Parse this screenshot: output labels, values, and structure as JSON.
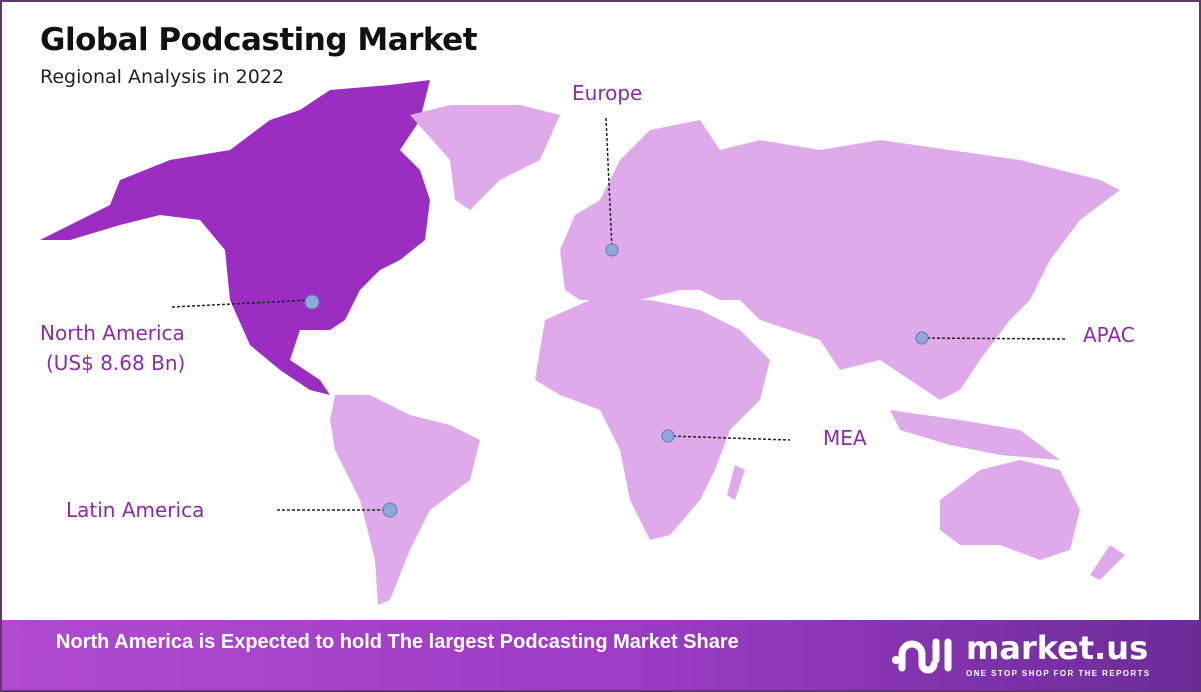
{
  "header": {
    "title": "Global Podcasting Market",
    "subtitle": "Regional Analysis in 2022"
  },
  "colors": {
    "highlight_region": "#9b2dc0",
    "other_regions": "#dfaaea",
    "label": "#8e2aa8",
    "marker": "#8ea8d8",
    "border": "#5a3d66"
  },
  "regions": [
    {
      "name": "North America",
      "value": "(US$ 8.68 Bn)",
      "highlighted": true
    },
    {
      "name": "Europe",
      "highlighted": false
    },
    {
      "name": "APAC",
      "highlighted": false
    },
    {
      "name": "MEA",
      "highlighted": false
    },
    {
      "name": "Latin America",
      "highlighted": false
    }
  ],
  "footer": {
    "text": "North America is Expected to hold The largest Podcasting Market Share"
  },
  "logo": {
    "name": "market.us",
    "tagline": "ONE STOP SHOP FOR THE REPORTS"
  }
}
